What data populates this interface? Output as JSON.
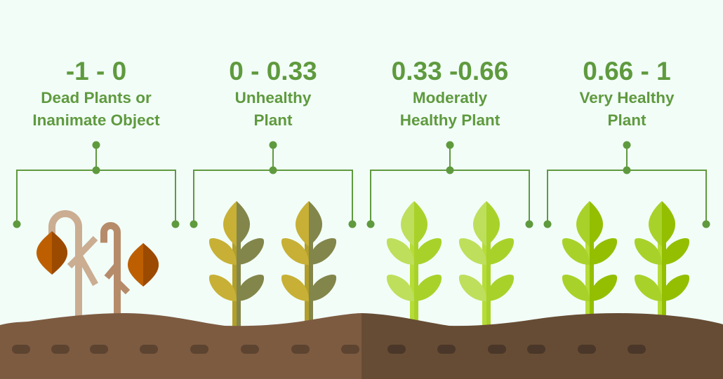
{
  "groups": [
    {
      "range": "-1 - 0",
      "desc_line1": "Dead Plants or",
      "desc_line2": "Inanimate Object",
      "state": "dead"
    },
    {
      "range": "0 - 0.33",
      "desc_line1": "Unhealthy",
      "desc_line2": "Plant",
      "state": "unhealthy"
    },
    {
      "range": "0.33 -0.66",
      "desc_line1": "Moderatly",
      "desc_line2": "Healthy Plant",
      "state": "moderate"
    },
    {
      "range": "0.66 - 1",
      "desc_line1": "Very Healthy",
      "desc_line2": "Plant",
      "state": "very-healthy"
    }
  ],
  "colors": {
    "background": "#f2fdf8",
    "text": "#5f9a3e",
    "connector": "#5f9a3e",
    "soil_left": "#7d5b41",
    "soil_right": "#664c34",
    "soil_dash_left": "#5d4430",
    "soil_dash_right": "#4a3729",
    "dead_stem_1": "#cbad92",
    "dead_stem_2": "#b68b6a",
    "dead_leaf_light": "#bd5f00",
    "dead_leaf_dark": "#9b4a00",
    "unhealthy": [
      "#c7b035",
      "#83864a",
      "#b29f2a"
    ],
    "moderate": [
      "#bedf5c",
      "#a8d22a",
      "#b6dc38"
    ],
    "very_healthy": [
      "#a8d22a",
      "#93bf00",
      "#b6dc38"
    ]
  }
}
